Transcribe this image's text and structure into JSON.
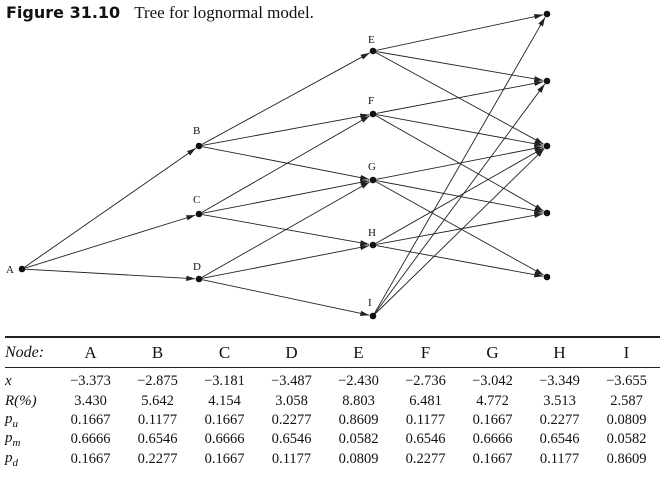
{
  "figure": {
    "label": "Figure 31.10",
    "title": "Tree for lognormal model."
  },
  "tree": {
    "nodes": [
      {
        "id": "A",
        "label": "A"
      },
      {
        "id": "B",
        "label": "B"
      },
      {
        "id": "C",
        "label": "C"
      },
      {
        "id": "D",
        "label": "D"
      },
      {
        "id": "E",
        "label": "E"
      },
      {
        "id": "F",
        "label": "F"
      },
      {
        "id": "G",
        "label": "G"
      },
      {
        "id": "H",
        "label": "H"
      },
      {
        "id": "I",
        "label": "I"
      },
      {
        "id": "T1",
        "label": ""
      },
      {
        "id": "T2",
        "label": ""
      },
      {
        "id": "T3",
        "label": ""
      },
      {
        "id": "T4",
        "label": ""
      },
      {
        "id": "T5",
        "label": ""
      }
    ],
    "edges": [
      [
        "A",
        "B"
      ],
      [
        "A",
        "C"
      ],
      [
        "A",
        "D"
      ],
      [
        "B",
        "E"
      ],
      [
        "B",
        "F"
      ],
      [
        "B",
        "G"
      ],
      [
        "C",
        "F"
      ],
      [
        "C",
        "G"
      ],
      [
        "C",
        "H"
      ],
      [
        "D",
        "G"
      ],
      [
        "D",
        "H"
      ],
      [
        "D",
        "I"
      ],
      [
        "E",
        "T1"
      ],
      [
        "E",
        "T2"
      ],
      [
        "E",
        "T3"
      ],
      [
        "F",
        "T2"
      ],
      [
        "F",
        "T3"
      ],
      [
        "F",
        "T4"
      ],
      [
        "G",
        "T3"
      ],
      [
        "G",
        "T4"
      ],
      [
        "G",
        "T5"
      ],
      [
        "H",
        "T3"
      ],
      [
        "H",
        "T4"
      ],
      [
        "H",
        "T5"
      ],
      [
        "I",
        "T1"
      ],
      [
        "I",
        "T2"
      ],
      [
        "I",
        "T3"
      ]
    ]
  },
  "table": {
    "header_label": "Node:",
    "columns": [
      "A",
      "B",
      "C",
      "D",
      "E",
      "F",
      "G",
      "H",
      "I"
    ],
    "rows": [
      {
        "label": "x",
        "values": [
          "−3.373",
          "−2.875",
          "−3.181",
          "−3.487",
          "−2.430",
          "−2.736",
          "−3.042",
          "−3.349",
          "−3.655"
        ]
      },
      {
        "label": "R(%)",
        "values": [
          "3.430",
          "5.642",
          "4.154",
          "3.058",
          "8.803",
          "6.481",
          "4.772",
          "3.513",
          "2.587"
        ]
      },
      {
        "label": "pu",
        "values": [
          "0.1667",
          "0.1177",
          "0.1667",
          "0.2277",
          "0.8609",
          "0.1177",
          "0.1667",
          "0.2277",
          "0.0809"
        ]
      },
      {
        "label": "pm",
        "values": [
          "0.6666",
          "0.6546",
          "0.6666",
          "0.6546",
          "0.0582",
          "0.6546",
          "0.6666",
          "0.6546",
          "0.0582"
        ]
      },
      {
        "label": "pd",
        "values": [
          "0.1667",
          "0.2277",
          "0.1667",
          "0.1177",
          "0.0809",
          "0.2277",
          "0.1667",
          "0.1177",
          "0.8609"
        ]
      }
    ]
  }
}
